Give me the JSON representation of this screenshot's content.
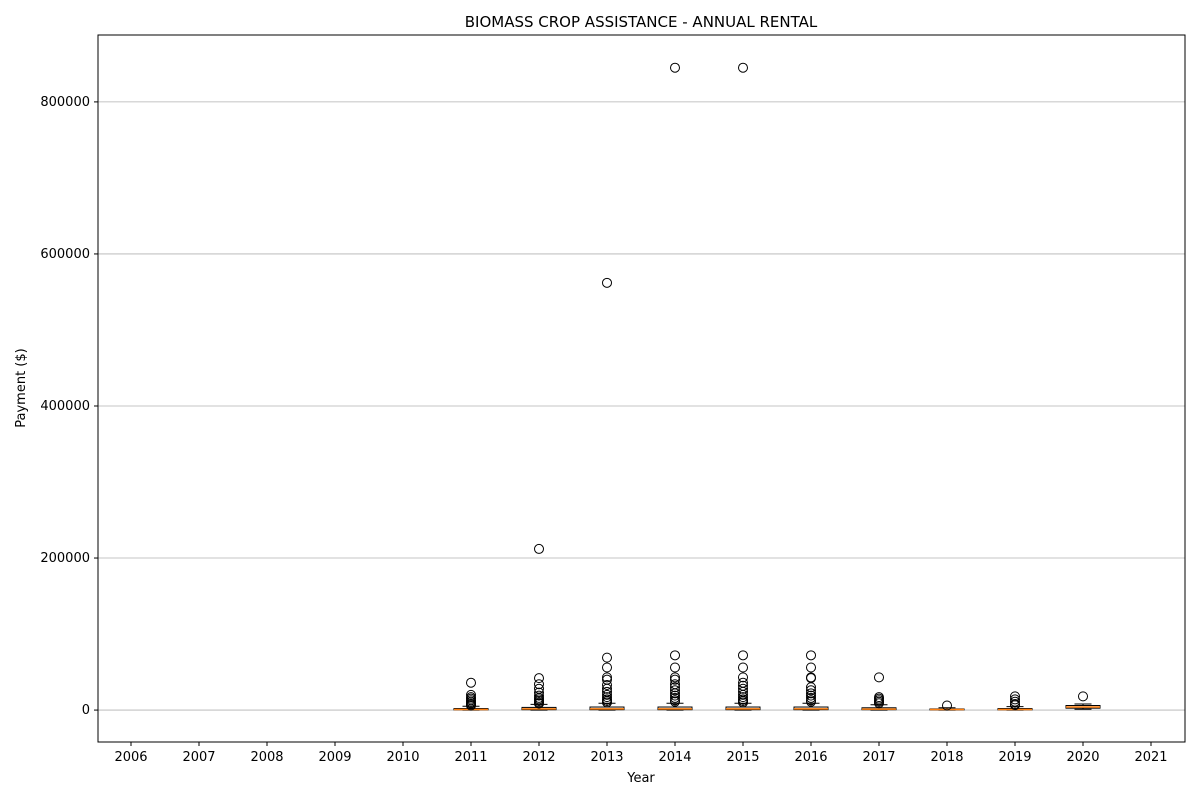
{
  "chart_data": {
    "type": "box",
    "title": "BIOMASS CROP ASSISTANCE - ANNUAL RENTAL",
    "xlabel": "Year",
    "ylabel": "Payment ($)",
    "categories": [
      "2006",
      "2007",
      "2008",
      "2009",
      "2010",
      "2011",
      "2012",
      "2013",
      "2014",
      "2015",
      "2016",
      "2017",
      "2018",
      "2019",
      "2020",
      "2021"
    ],
    "ylim": [
      -42000,
      888000
    ],
    "yticks": [
      0,
      200000,
      400000,
      600000,
      800000
    ],
    "ytick_labels": [
      "0",
      "200000",
      "400000",
      "600000",
      "800000"
    ],
    "grid": "y",
    "box_color": "#000000",
    "median_color": "#ff7f0e",
    "boxes": [
      {
        "year": "2011",
        "whisker_low": 0,
        "q1": 300,
        "median": 800,
        "q3": 2000,
        "whisker_high": 5000,
        "outliers": [
          36000,
          20000,
          17000,
          15000,
          13000,
          11000,
          9000,
          7500,
          6000
        ]
      },
      {
        "year": "2012",
        "whisker_low": 0,
        "q1": 500,
        "median": 1500,
        "q3": 3500,
        "whisker_high": 7500,
        "outliers": [
          212000,
          42000,
          34000,
          28000,
          23000,
          19000,
          16000,
          14000,
          12000,
          10000,
          8500
        ]
      },
      {
        "year": "2013",
        "whisker_low": 0,
        "q1": 500,
        "median": 1500,
        "q3": 4000,
        "whisker_high": 9000,
        "outliers": [
          562000,
          69000,
          56000,
          43000,
          40000,
          33000,
          28000,
          24000,
          20000,
          17000,
          14000,
          12000,
          10000
        ]
      },
      {
        "year": "2014",
        "whisker_low": 0,
        "q1": 500,
        "median": 1500,
        "q3": 4000,
        "whisker_high": 9000,
        "outliers": [
          845000,
          72000,
          56000,
          43000,
          40000,
          34000,
          30000,
          26000,
          22000,
          19000,
          16000,
          13000,
          11000
        ]
      },
      {
        "year": "2015",
        "whisker_low": 0,
        "q1": 500,
        "median": 1500,
        "q3": 4000,
        "whisker_high": 9000,
        "outliers": [
          845000,
          72000,
          56000,
          43000,
          36000,
          32000,
          28000,
          24000,
          20000,
          17000,
          14000,
          12000,
          10000
        ]
      },
      {
        "year": "2016",
        "whisker_low": 0,
        "q1": 500,
        "median": 1500,
        "q3": 4000,
        "whisker_high": 9000,
        "outliers": [
          72000,
          56000,
          43000,
          42000,
          30000,
          26000,
          22000,
          19000,
          16000,
          13000,
          11000
        ]
      },
      {
        "year": "2017",
        "whisker_low": 0,
        "q1": 500,
        "median": 1200,
        "q3": 3000,
        "whisker_high": 7000,
        "outliers": [
          43000,
          17000,
          15000,
          13000,
          11000,
          9000
        ]
      },
      {
        "year": "2018",
        "whisker_low": 0,
        "q1": 300,
        "median": 800,
        "q3": 1500,
        "whisker_high": 3000,
        "outliers": [
          6000
        ]
      },
      {
        "year": "2019",
        "whisker_low": 0,
        "q1": 300,
        "median": 800,
        "q3": 2000,
        "whisker_high": 4500,
        "outliers": [
          18000,
          14000,
          11000,
          8000,
          6500
        ]
      },
      {
        "year": "2020",
        "whisker_low": 1000,
        "q1": 2500,
        "median": 4000,
        "q3": 6000,
        "whisker_high": 8000,
        "outliers": [
          18000
        ]
      }
    ]
  }
}
